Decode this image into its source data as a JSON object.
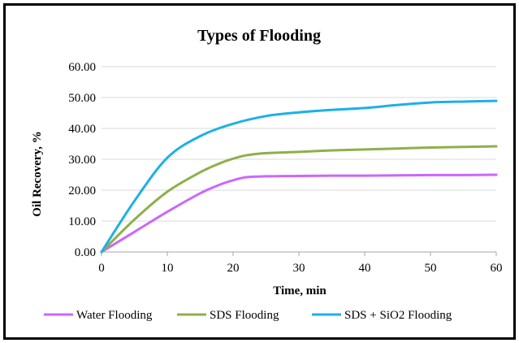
{
  "chart_data": {
    "type": "line",
    "title": "Types of Flooding",
    "xlabel": "Time, min",
    "ylabel": "Oil Recovery, %",
    "xlim": [
      0,
      60
    ],
    "ylim": [
      0,
      60
    ],
    "xticks": [
      "0",
      "10",
      "20",
      "30",
      "40",
      "50",
      "60"
    ],
    "yticks": [
      "0.00",
      "10.00",
      "20.00",
      "30.00",
      "40.00",
      "50.00",
      "60.00"
    ],
    "grid": "horizontal",
    "legend_position": "bottom",
    "series": [
      {
        "name": "Water Flooding",
        "color": "#CC66FF",
        "x": [
          0,
          5,
          10,
          15,
          18,
          20,
          22,
          25,
          30,
          35,
          40,
          45,
          50,
          55,
          60
        ],
        "y": [
          0,
          6.5,
          13,
          19,
          21.8,
          23.2,
          24.2,
          24.5,
          24.6,
          24.7,
          24.7,
          24.8,
          24.9,
          24.9,
          25.0
        ]
      },
      {
        "name": "SDS Flooding",
        "color": "#8DB04A",
        "x": [
          0,
          5,
          10,
          15,
          18,
          20,
          22,
          25,
          30,
          35,
          40,
          45,
          50,
          55,
          60
        ],
        "y": [
          0,
          10.5,
          19.5,
          25.8,
          28.7,
          30.2,
          31.3,
          32.0,
          32.4,
          32.9,
          33.2,
          33.5,
          33.8,
          34.0,
          34.2
        ]
      },
      {
        "name": "SDS + SiO2 Flooding",
        "color": "#1DB0E8",
        "x": [
          0,
          5,
          10,
          15,
          20,
          25,
          30,
          35,
          40,
          45,
          50,
          55,
          60
        ],
        "y": [
          0,
          16.5,
          30.5,
          37.5,
          41.5,
          44.0,
          45.2,
          46.0,
          46.6,
          47.6,
          48.4,
          48.7,
          48.9
        ]
      }
    ]
  }
}
